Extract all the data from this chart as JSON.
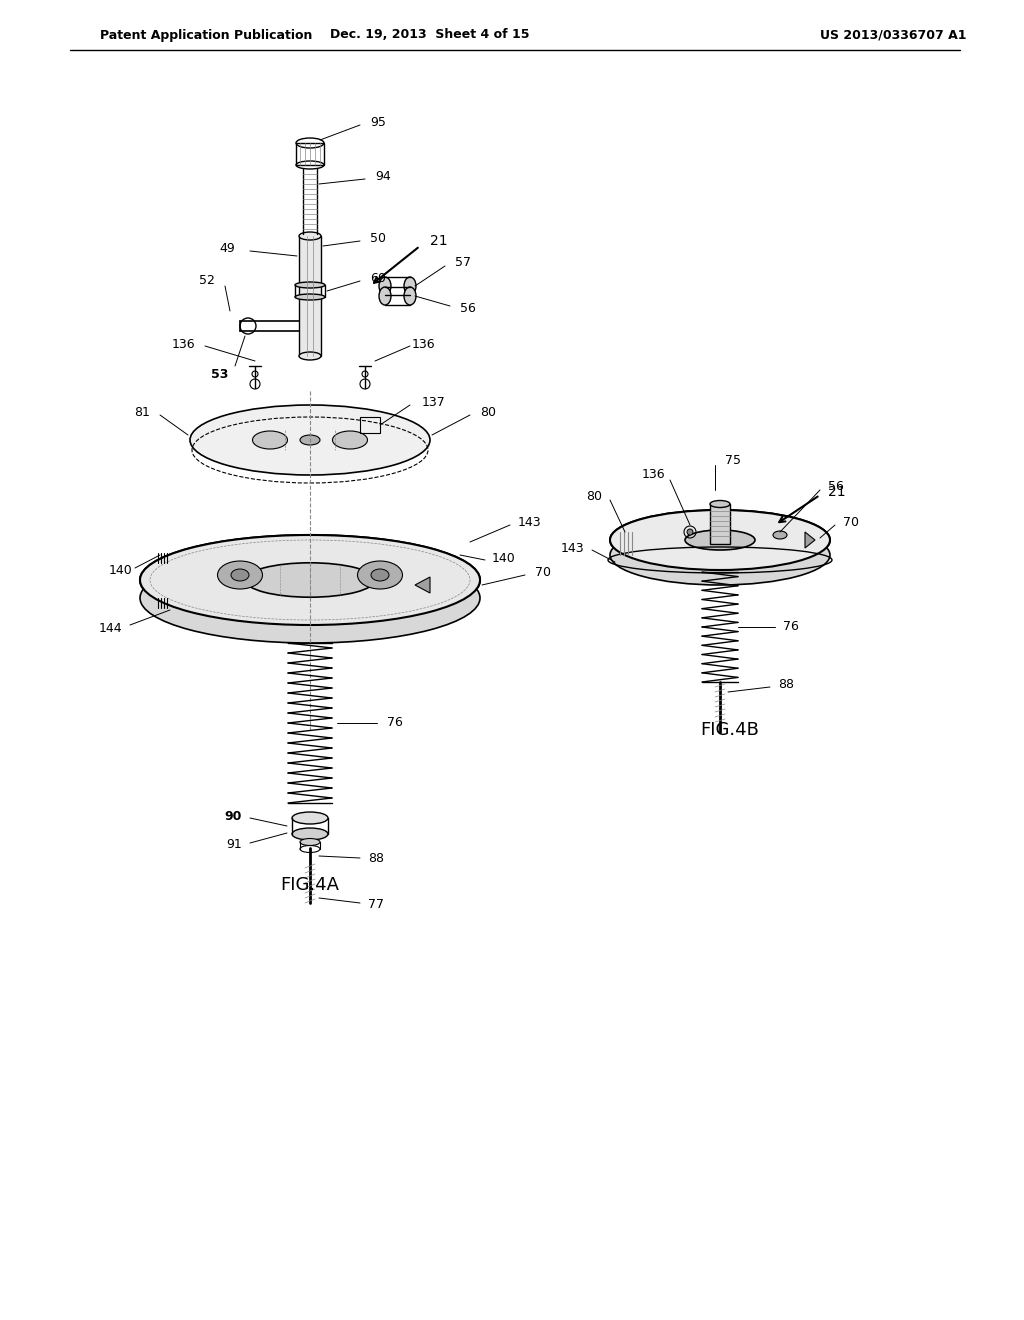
{
  "bg_color": "#ffffff",
  "header_left": "Patent Application Publication",
  "header_mid": "Dec. 19, 2013  Sheet 4 of 15",
  "header_right": "US 2013/0336707 A1",
  "fig4a_label": "FIG.4A",
  "fig4b_label": "FIG.4B",
  "title_color": "#000000",
  "line_color": "#000000",
  "gray_color": "#888888"
}
